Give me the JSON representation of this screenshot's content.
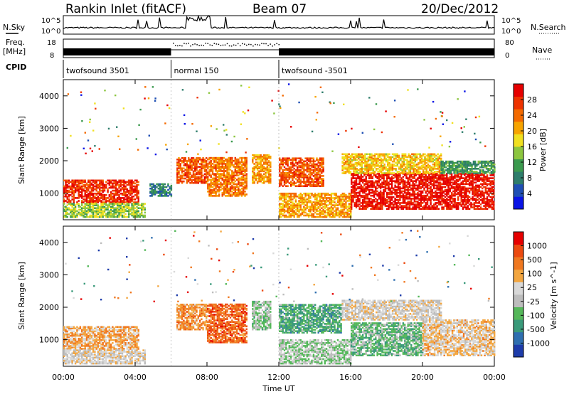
{
  "header": {
    "title": "Rankin Inlet (fitACF)",
    "beam": "Beam 07",
    "date": "20/Dec/2012"
  },
  "noise_panel": {
    "left_label": "N.Sky",
    "right_label": "N.Search",
    "ticks_left": [
      "10^5",
      "10^0"
    ],
    "ticks_right": [
      "10^5",
      "10^0"
    ]
  },
  "freq_panel": {
    "left_label_top": "Freq.",
    "left_label_bottom": "[MHz]",
    "right_label": "Nave",
    "ticks_left": [
      "18",
      "8"
    ],
    "ticks_right": [
      "80",
      "0"
    ]
  },
  "cpid_panel": {
    "label": "CPID",
    "segments": [
      {
        "name": "twofsound 3501",
        "start": 0,
        "end": 6
      },
      {
        "name": "normal 150",
        "start": 6,
        "end": 12
      },
      {
        "name": "twofsound -3501",
        "start": 12,
        "end": 24
      }
    ]
  },
  "colors": {
    "power_scale": [
      "#0a14e6",
      "#1f4fb4",
      "#2e7d6b",
      "#3b9a4e",
      "#8cc63f",
      "#f0e020",
      "#f7a400",
      "#f46a00",
      "#ee3300",
      "#e60000"
    ],
    "velocity_scale": [
      "#1e3caa",
      "#2f6fb0",
      "#3a9a7a",
      "#55b85a",
      "#bdbdbd",
      "#d8d8d8",
      "#f3a640",
      "#f07820",
      "#ec4a10",
      "#e60000"
    ]
  },
  "x_axis": {
    "label": "Time UT",
    "ticks": [
      "00:00",
      "04:00",
      "08:00",
      "12:00",
      "16:00",
      "20:00",
      "00:00"
    ]
  },
  "chart_data": [
    {
      "type": "heatmap",
      "title": "Power",
      "xlabel": "Time UT",
      "ylabel": "Slant Range [km]",
      "xlim": [
        0,
        24
      ],
      "ylim": [
        180,
        4500
      ],
      "yticks": [
        "4000",
        "3000",
        "2000",
        "1000"
      ],
      "colorbar": {
        "label": "Power [dB]",
        "ticks": [
          "28",
          "24",
          "20",
          "16",
          "12",
          "8",
          "4"
        ],
        "range": [
          0,
          30
        ]
      },
      "regions": [
        {
          "t0": 0.0,
          "t1": 4.2,
          "r0": 700,
          "r1": 1400,
          "value": 26
        },
        {
          "t0": 0.0,
          "t1": 4.5,
          "r0": 250,
          "r1": 700,
          "value": 14
        },
        {
          "t0": 4.8,
          "t1": 6.0,
          "r0": 900,
          "r1": 1300,
          "value": 8
        },
        {
          "t0": 6.3,
          "t1": 8.0,
          "r0": 1300,
          "r1": 2100,
          "value": 24
        },
        {
          "t0": 8.0,
          "t1": 10.2,
          "r0": 900,
          "r1": 2100,
          "value": 22
        },
        {
          "t0": 10.5,
          "t1": 11.5,
          "r0": 1300,
          "r1": 2200,
          "value": 20
        },
        {
          "t0": 12.0,
          "t1": 14.5,
          "r0": 1200,
          "r1": 2100,
          "value": 24
        },
        {
          "t0": 12.0,
          "t1": 16.0,
          "r0": 250,
          "r1": 1000,
          "value": 20
        },
        {
          "t0": 16.0,
          "t1": 24.0,
          "r0": 500,
          "r1": 1600,
          "value": 28
        },
        {
          "t0": 15.5,
          "t1": 21.0,
          "r0": 1600,
          "r1": 2200,
          "value": 18
        },
        {
          "t0": 21.0,
          "t1": 24.0,
          "r0": 1600,
          "r1": 2000,
          "value": 10
        }
      ]
    },
    {
      "type": "heatmap",
      "title": "Velocity",
      "xlabel": "Time UT",
      "ylabel": "Slant Range [km]",
      "xlim": [
        0,
        24
      ],
      "ylim": [
        180,
        4500
      ],
      "yticks": [
        "4000",
        "3000",
        "2000",
        "1000"
      ],
      "colorbar": {
        "label": "Velocity [m s^-1]",
        "ticks": [
          "1000",
          "500",
          "100",
          "25",
          "-25",
          "-100",
          "-500",
          "-1000"
        ],
        "range": [
          -1000,
          1000
        ]
      },
      "regions": [
        {
          "t0": 0.0,
          "t1": 4.2,
          "r0": 700,
          "r1": 1400,
          "value": 300
        },
        {
          "t0": 0.0,
          "t1": 4.5,
          "r0": 250,
          "r1": 700,
          "value": 50
        },
        {
          "t0": 6.3,
          "t1": 8.0,
          "r0": 1300,
          "r1": 2100,
          "value": 400
        },
        {
          "t0": 8.0,
          "t1": 10.2,
          "r0": 900,
          "r1": 2100,
          "value": 600
        },
        {
          "t0": 10.5,
          "t1": 11.5,
          "r0": 1300,
          "r1": 2200,
          "value": -200
        },
        {
          "t0": 12.0,
          "t1": 15.5,
          "r0": 1200,
          "r1": 2100,
          "value": -400
        },
        {
          "t0": 12.0,
          "t1": 16.0,
          "r0": 250,
          "r1": 1000,
          "value": -150
        },
        {
          "t0": 16.0,
          "t1": 20.0,
          "r0": 500,
          "r1": 1500,
          "value": -300
        },
        {
          "t0": 20.0,
          "t1": 24.0,
          "r0": 500,
          "r1": 1600,
          "value": 200
        },
        {
          "t0": 15.5,
          "t1": 21.0,
          "r0": 1600,
          "r1": 2200,
          "value": 50
        }
      ]
    }
  ]
}
